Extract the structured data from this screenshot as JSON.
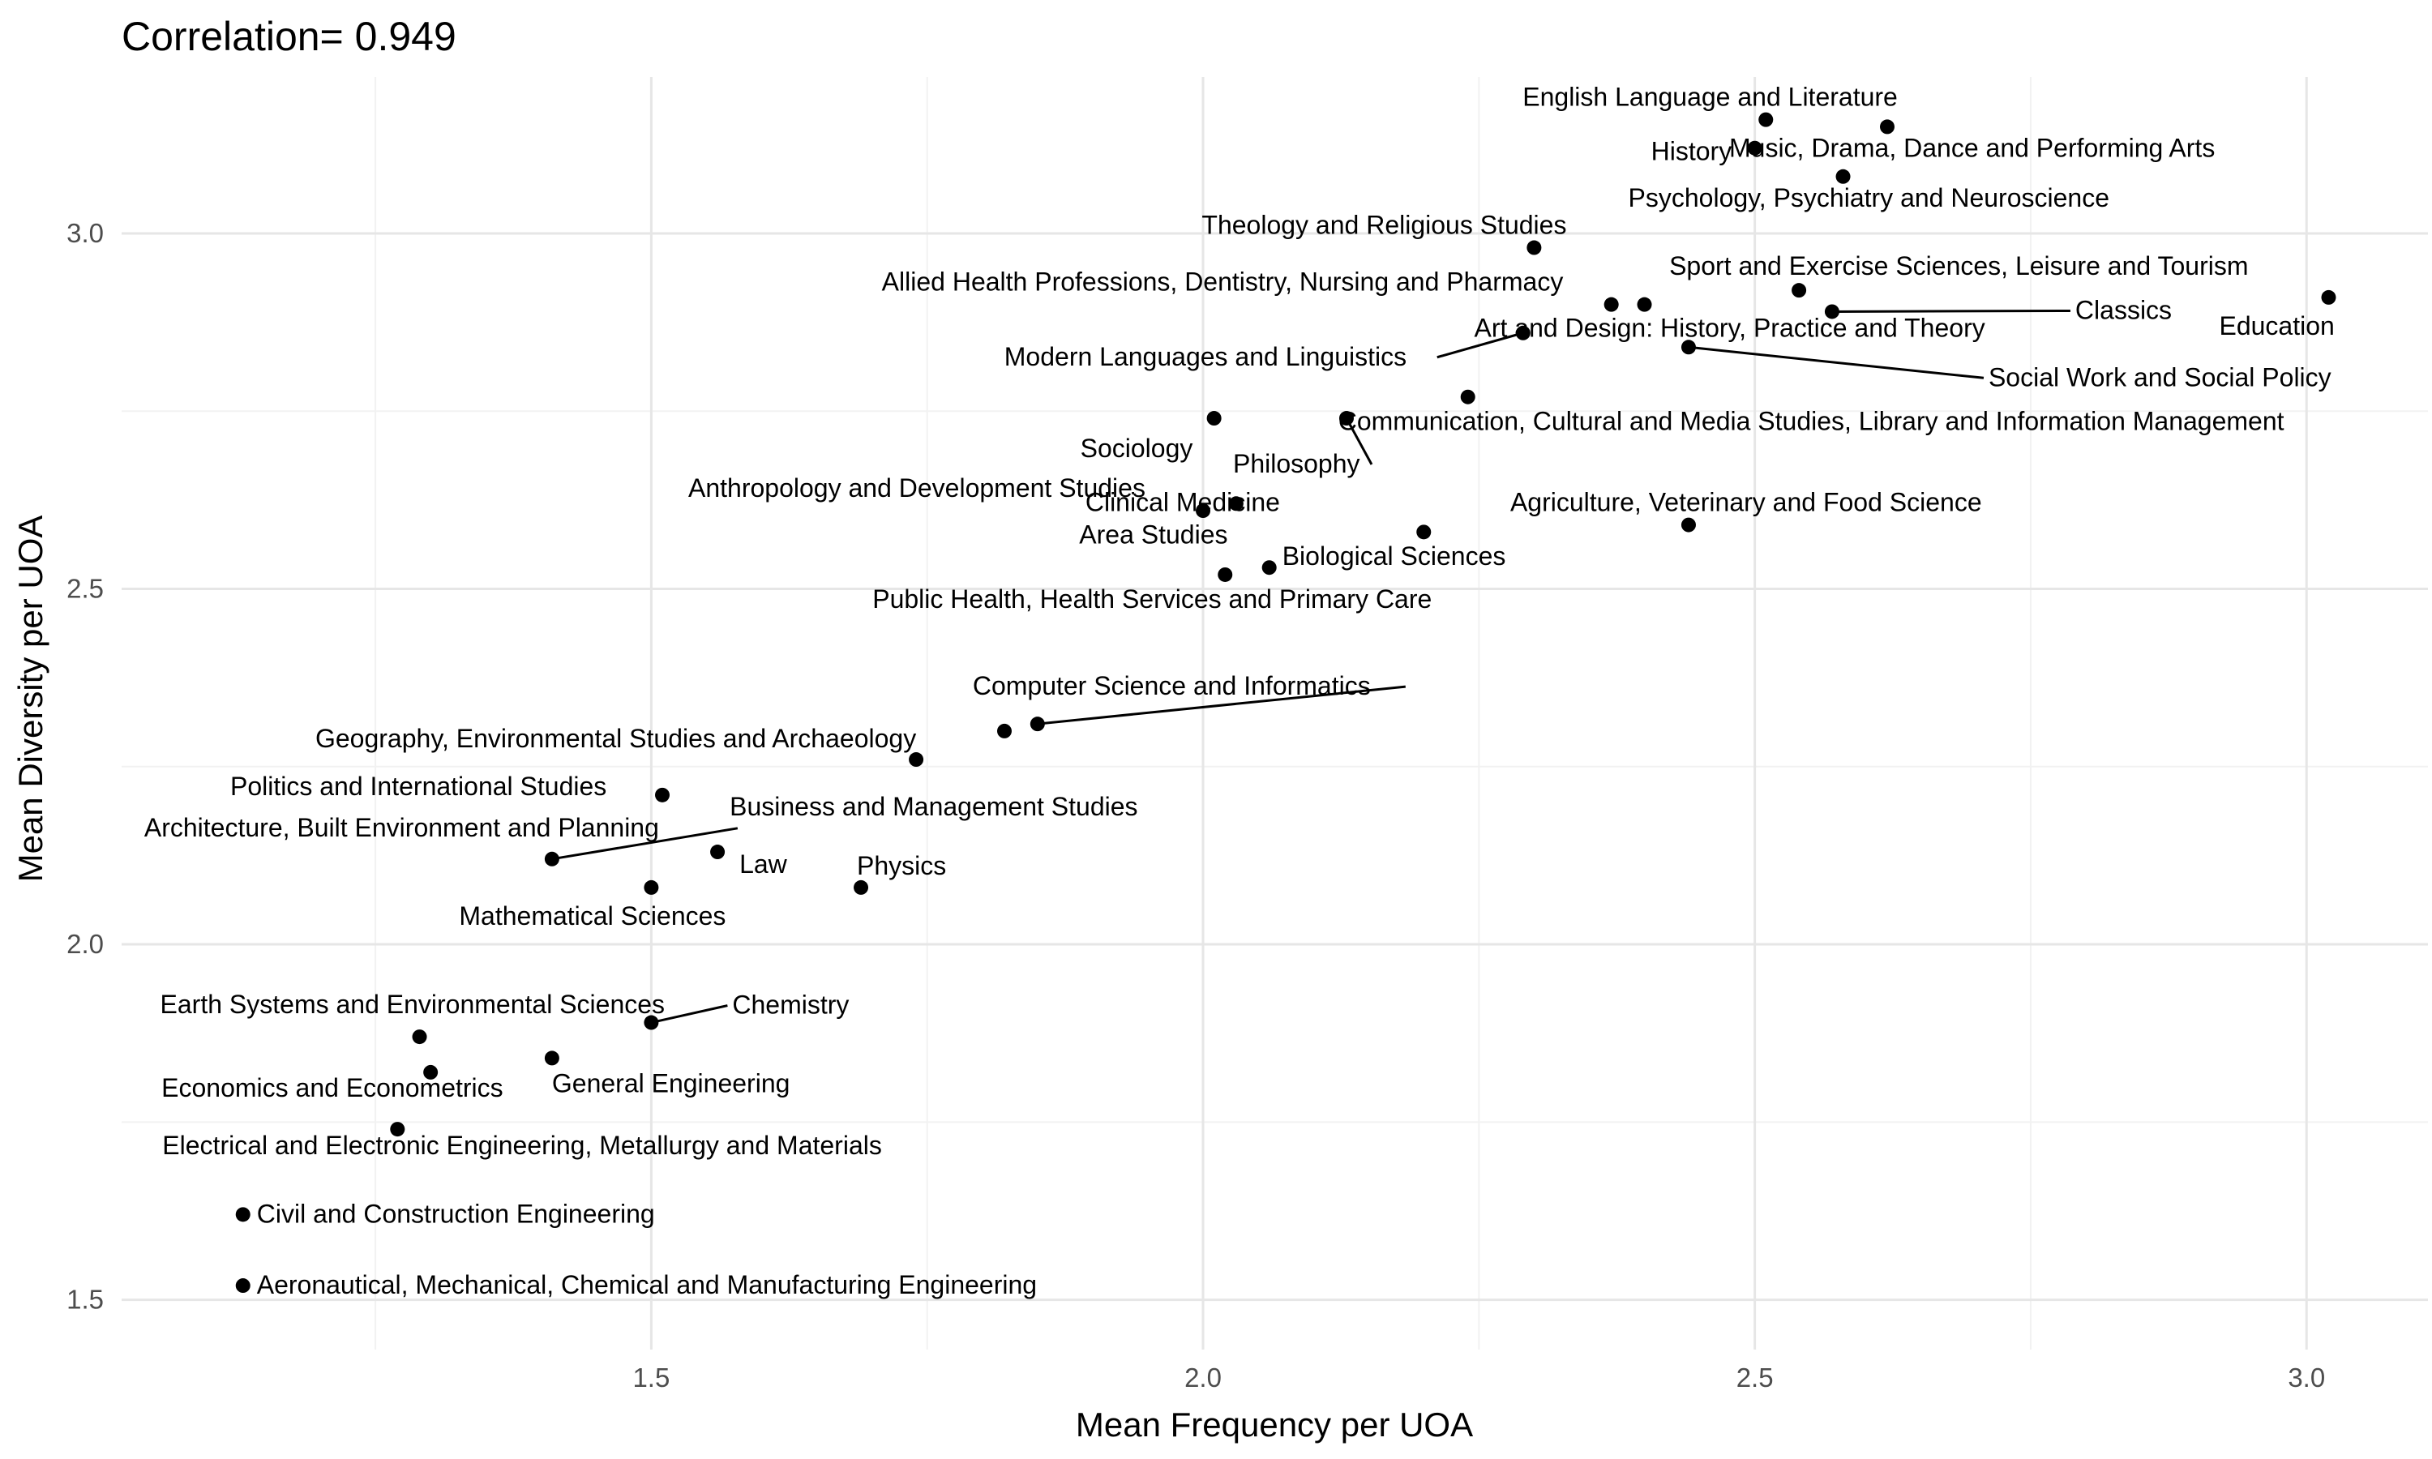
{
  "chart_data": {
    "type": "scatter",
    "title": "Correlation= 0.949",
    "xlabel": "Mean Frequency per UOA",
    "ylabel": "Mean Diversity per UOA",
    "xlim": [
      1.02,
      3.11
    ],
    "ylim": [
      1.43,
      3.22
    ],
    "xticks": [
      1.5,
      2.0,
      2.5,
      3.0
    ],
    "xtick_labels": [
      "1.5",
      "2.0",
      "2.5",
      "3.0"
    ],
    "yticks": [
      1.5,
      2.0,
      2.5,
      3.0
    ],
    "ytick_labels": [
      "1.5",
      "2.0",
      "2.5",
      "3.0"
    ],
    "grid": true,
    "points": [
      {
        "label": "English Language and Literature",
        "x": 2.51,
        "y": 3.16
      },
      {
        "label": "Music, Drama, Dance and Performing Arts",
        "x": 2.62,
        "y": 3.15
      },
      {
        "label": "History",
        "x": 2.5,
        "y": 3.12
      },
      {
        "label": "Psychology, Psychiatry and Neuroscience",
        "x": 2.58,
        "y": 3.08
      },
      {
        "label": "Theology and Religious Studies",
        "x": 2.3,
        "y": 2.98
      },
      {
        "label": "Sport and Exercise Sciences, Leisure and Tourism",
        "x": 2.54,
        "y": 2.92
      },
      {
        "label": "Education",
        "x": 3.02,
        "y": 2.91
      },
      {
        "label": "Allied Health Professions, Dentistry, Nursing and Pharmacy",
        "x": 2.37,
        "y": 2.9
      },
      {
        "label": "Art and Design: History, Practice and Theory",
        "x": 2.4,
        "y": 2.9
      },
      {
        "label": "Classics",
        "x": 2.57,
        "y": 2.89
      },
      {
        "label": "Modern Languages and Linguistics",
        "x": 2.29,
        "y": 2.86
      },
      {
        "label": "Social Work and Social Policy",
        "x": 2.44,
        "y": 2.84
      },
      {
        "label": "Communication, Cultural and Media Studies, Library and Information Management",
        "x": 2.24,
        "y": 2.77
      },
      {
        "label": "Sociology",
        "x": 2.01,
        "y": 2.74
      },
      {
        "label": "Philosophy",
        "x": 2.13,
        "y": 2.74
      },
      {
        "label": "Anthropology and Development Studies",
        "x": 2.0,
        "y": 2.61
      },
      {
        "label": "Clinical Medicine",
        "x": 2.03,
        "y": 2.62
      },
      {
        "label": "Agriculture, Veterinary and Food Science",
        "x": 2.44,
        "y": 2.59
      },
      {
        "label": "Area Studies",
        "x": 2.2,
        "y": 2.58
      },
      {
        "label": "Biological Sciences",
        "x": 2.06,
        "y": 2.53
      },
      {
        "label": "Public Health, Health Services and Primary Care",
        "x": 2.02,
        "y": 2.52
      },
      {
        "label": "Computer Science and Informatics",
        "x": 1.85,
        "y": 2.31
      },
      {
        "label": "Geography, Environmental Studies and Archaeology",
        "x": 1.82,
        "y": 2.3
      },
      {
        "label": "Business and Management Studies",
        "x": 1.74,
        "y": 2.26
      },
      {
        "label": "Politics and International Studies",
        "x": 1.51,
        "y": 2.21
      },
      {
        "label": "Law",
        "x": 1.56,
        "y": 2.13
      },
      {
        "label": "Architecture, Built Environment and Planning",
        "x": 1.41,
        "y": 2.12
      },
      {
        "label": "Physics",
        "x": 1.69,
        "y": 2.08
      },
      {
        "label": "Mathematical Sciences",
        "x": 1.5,
        "y": 2.08
      },
      {
        "label": "Chemistry",
        "x": 1.5,
        "y": 1.89
      },
      {
        "label": "Earth Systems and Environmental Sciences",
        "x": 1.29,
        "y": 1.87
      },
      {
        "label": "General Engineering",
        "x": 1.41,
        "y": 1.84
      },
      {
        "label": "Economics and Econometrics",
        "x": 1.3,
        "y": 1.82
      },
      {
        "label": "Electrical and Electronic Engineering, Metallurgy and Materials",
        "x": 1.27,
        "y": 1.74
      },
      {
        "label": "Civil and Construction Engineering",
        "x": 1.13,
        "y": 1.62
      },
      {
        "label": "Aeronautical, Mechanical, Chemical and Manufacturing Engineering",
        "x": 1.13,
        "y": 1.52
      }
    ]
  }
}
